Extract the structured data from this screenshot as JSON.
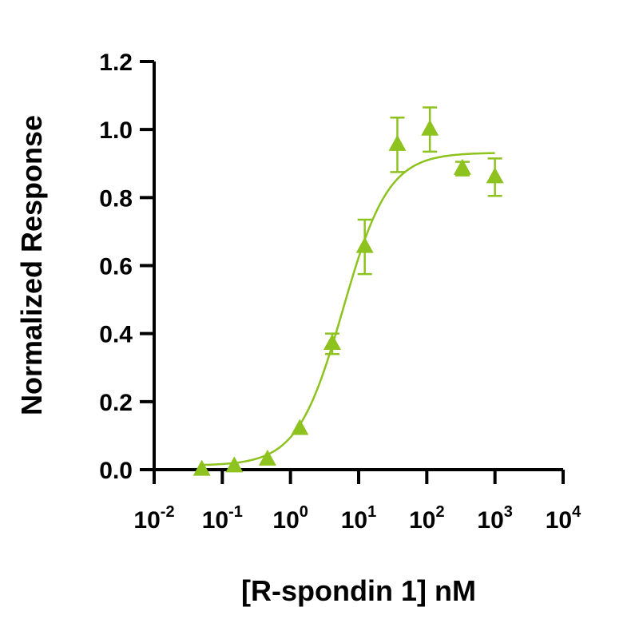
{
  "chart_data": {
    "type": "scatter",
    "title": "",
    "xlabel": "[R-spondin 1] nM",
    "ylabel": "Normalized Response",
    "xscale": "log",
    "xlim": [
      0.01,
      10000
    ],
    "ylim": [
      0,
      1.2
    ],
    "grid": false,
    "legend": "none",
    "color": "#8dc21f",
    "marker": "triangle",
    "x_ticks": [
      {
        "value": 0.01,
        "base": "10",
        "exp": "-2"
      },
      {
        "value": 0.1,
        "base": "10",
        "exp": "-1"
      },
      {
        "value": 1,
        "base": "10",
        "exp": "0"
      },
      {
        "value": 10,
        "base": "10",
        "exp": "1"
      },
      {
        "value": 100,
        "base": "10",
        "exp": "2"
      },
      {
        "value": 1000,
        "base": "10",
        "exp": "3"
      },
      {
        "value": 10000,
        "base": "10",
        "exp": "4"
      }
    ],
    "y_ticks": [
      {
        "value": 0.0,
        "label": "0.0"
      },
      {
        "value": 0.2,
        "label": "0.2"
      },
      {
        "value": 0.4,
        "label": "0.4"
      },
      {
        "value": 0.6,
        "label": "0.6"
      },
      {
        "value": 0.8,
        "label": "0.8"
      },
      {
        "value": 1.0,
        "label": "1.0"
      },
      {
        "value": 1.2,
        "label": "1.2"
      }
    ],
    "series": [
      {
        "points": [
          {
            "x": 0.05,
            "y": 0.0,
            "err": 0.0
          },
          {
            "x": 0.15,
            "y": 0.01,
            "err": 0.0
          },
          {
            "x": 0.46,
            "y": 0.03,
            "err": 0.0
          },
          {
            "x": 1.37,
            "y": 0.12,
            "err": 0.0
          },
          {
            "x": 4.1,
            "y": 0.37,
            "err": 0.03
          },
          {
            "x": 12.3,
            "y": 0.655,
            "err": 0.08
          },
          {
            "x": 37,
            "y": 0.955,
            "err": 0.08
          },
          {
            "x": 111,
            "y": 1.0,
            "err": 0.065
          },
          {
            "x": 333,
            "y": 0.885,
            "err": 0.02
          },
          {
            "x": 1000,
            "y": 0.86,
            "err": 0.055
          }
        ],
        "fit": {
          "model": "4PL",
          "bottom": 0.012,
          "top": 0.932,
          "ec50": 5.9,
          "hill": 1.3,
          "x_range": [
            0.05,
            1000
          ]
        }
      }
    ]
  }
}
